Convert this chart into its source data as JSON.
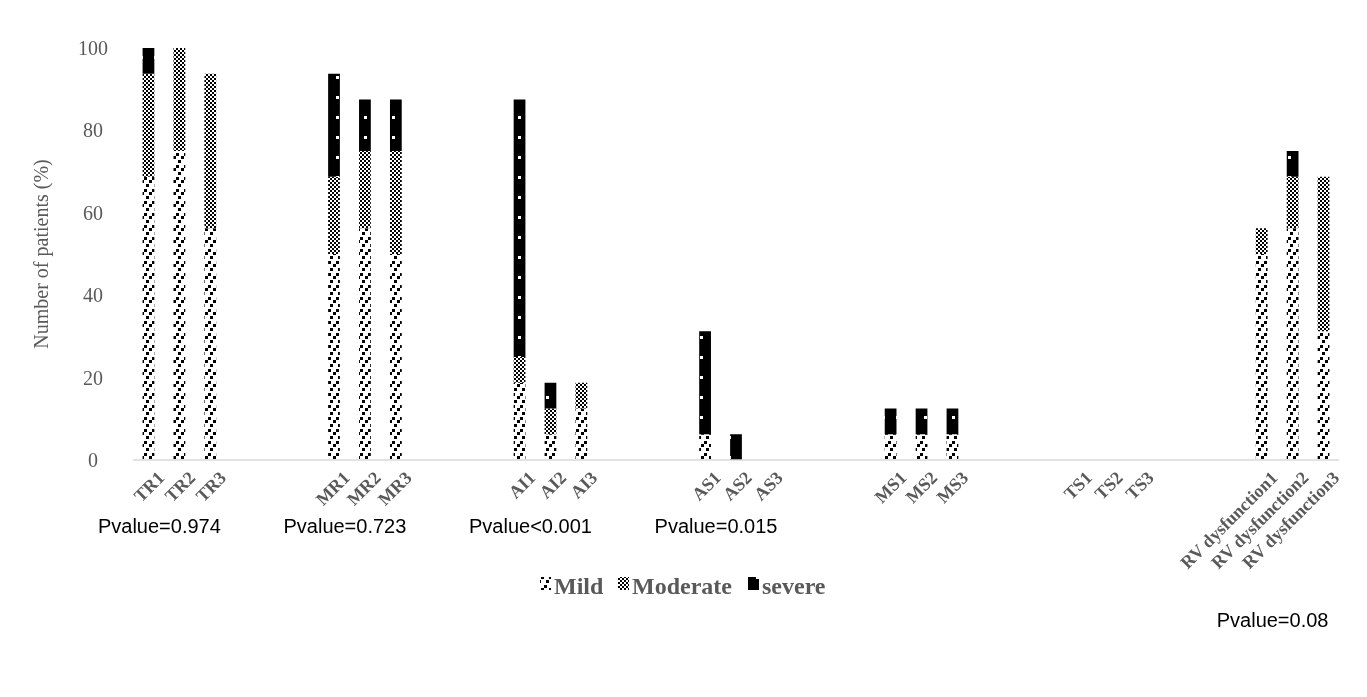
{
  "chart_data": {
    "type": "bar",
    "stacked": true,
    "ylabel": "Number of patients (%)",
    "categories": [
      "TR1",
      "TR2",
      "TR3",
      null,
      null,
      null,
      "MR1",
      "MR2",
      "MR3",
      null,
      null,
      null,
      "AI1",
      "AI2",
      "AI3",
      null,
      null,
      null,
      "AS1",
      "AS2",
      "AS3",
      null,
      null,
      null,
      "MS1",
      "MS2",
      "MS3",
      null,
      null,
      null,
      "TS1",
      "TS2",
      "TS3",
      null,
      null,
      null,
      "RV dysfunction1",
      "RV dysfunction2",
      "RV dysfunction3"
    ],
    "series": [
      {
        "name": "Mild",
        "color": "#000000",
        "values": [
          68.75,
          75,
          56.25,
          null,
          null,
          null,
          50,
          56.25,
          50,
          null,
          null,
          null,
          18.75,
          6.25,
          12.5,
          null,
          null,
          null,
          6.25,
          0,
          0,
          null,
          null,
          null,
          6.25,
          6.25,
          6.25,
          null,
          null,
          null,
          0,
          0,
          0,
          null,
          null,
          null,
          50,
          56.25,
          31.25
        ]
      },
      {
        "name": "Moderate",
        "color": "#000000",
        "values": [
          25,
          25,
          37.5,
          null,
          null,
          null,
          18.75,
          18.75,
          25,
          null,
          null,
          null,
          6.25,
          6.25,
          6.25,
          null,
          null,
          null,
          0,
          0,
          0,
          null,
          null,
          null,
          0,
          0,
          0,
          null,
          null,
          null,
          0,
          0,
          0,
          null,
          null,
          null,
          6.25,
          12.5,
          37.5
        ]
      },
      {
        "name": "severe",
        "color": "#000000",
        "values": [
          6.25,
          0,
          0,
          null,
          null,
          null,
          25,
          12.5,
          12.5,
          null,
          null,
          null,
          62.5,
          6.25,
          0,
          null,
          null,
          null,
          25,
          6.25,
          0,
          null,
          null,
          null,
          6.25,
          6.25,
          6.25,
          null,
          null,
          null,
          0,
          0,
          0,
          null,
          null,
          null,
          0,
          6.25,
          0
        ]
      }
    ],
    "ylim": [
      0,
      100
    ],
    "yticks": [
      0,
      20,
      40,
      60,
      80,
      100
    ],
    "legend": "bottom",
    "annotations": [
      "Pvalue=0.974",
      "Pvalue=0.723",
      "Pvalue<0.001",
      "Pvalue=0.015",
      "Pvalue=0.08"
    ]
  }
}
